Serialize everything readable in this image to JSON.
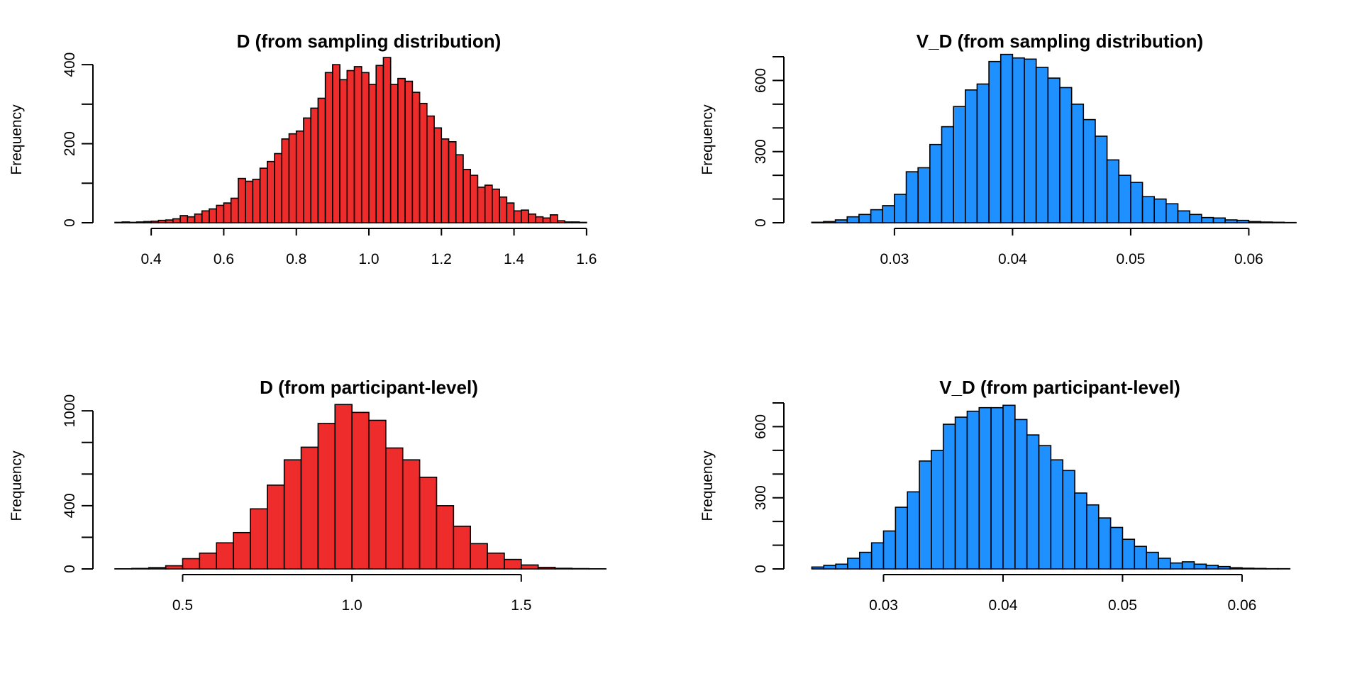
{
  "chart_data": [
    {
      "type": "bar",
      "title": "D (from sampling distribution)",
      "xlabel": "",
      "ylabel": "Frequency",
      "fill_color": "#ee2c2c",
      "x_range": [
        0.3,
        1.7
      ],
      "ylim": [
        0,
        420
      ],
      "x_ticks": [
        0.4,
        0.6,
        0.8,
        1.0,
        1.2,
        1.4,
        1.6
      ],
      "x_tick_labels": [
        "0.4",
        "0.6",
        "0.8",
        "1.0",
        "1.2",
        "1.4",
        "1.6"
      ],
      "y_ticks": [
        0,
        100,
        200,
        300,
        400
      ],
      "y_tick_labels": [
        "0",
        "",
        "200",
        "",
        "400"
      ],
      "bin_start": 0.3,
      "bin_width": 0.02,
      "values": [
        1,
        2,
        1,
        2,
        3,
        4,
        6,
        7,
        10,
        18,
        15,
        22,
        30,
        35,
        44,
        50,
        62,
        112,
        105,
        110,
        138,
        155,
        175,
        212,
        225,
        232,
        265,
        290,
        315,
        380,
        400,
        362,
        385,
        395,
        380,
        350,
        398,
        418,
        350,
        365,
        358,
        330,
        302,
        270,
        240,
        212,
        205,
        172,
        135,
        120,
        90,
        95,
        85,
        65,
        50,
        30,
        32,
        22,
        15,
        12,
        20,
        5,
        2,
        2,
        1,
        0,
        0,
        0,
        0,
        0
      ]
    },
    {
      "type": "bar",
      "title": "V_D (from sampling distribution)",
      "xlabel": "",
      "ylabel": "Frequency",
      "fill_color": "#1e90ff",
      "x_range": [
        0.0225,
        0.0655
      ],
      "ylim": [
        0,
        700
      ],
      "x_ticks": [
        0.03,
        0.04,
        0.05,
        0.06
      ],
      "x_tick_labels": [
        "0.03",
        "0.04",
        "0.05",
        "0.06"
      ],
      "y_ticks": [
        0,
        100,
        200,
        300,
        400,
        500,
        600,
        700
      ],
      "y_tick_labels": [
        "0",
        "",
        "",
        "300",
        "",
        "",
        "600",
        ""
      ],
      "bin_start": 0.023,
      "bin_width": 0.001,
      "values": [
        2,
        5,
        12,
        25,
        35,
        55,
        72,
        120,
        215,
        232,
        330,
        405,
        490,
        560,
        585,
        680,
        710,
        695,
        690,
        655,
        610,
        570,
        500,
        435,
        365,
        265,
        200,
        170,
        110,
        100,
        80,
        50,
        35,
        22,
        20,
        12,
        10,
        5,
        3,
        2,
        1,
        0
      ]
    },
    {
      "type": "bar",
      "title": "D (from participant-level)",
      "xlabel": "",
      "ylabel": "Frequency",
      "fill_color": "#ee2c2c",
      "x_range": [
        0.3,
        1.8
      ],
      "ylim": [
        0,
        1050
      ],
      "x_ticks": [
        0.5,
        1.0,
        1.5
      ],
      "x_tick_labels": [
        "0.5",
        "1.0",
        "1.5"
      ],
      "y_ticks": [
        0,
        200,
        400,
        600,
        800,
        1000
      ],
      "y_tick_labels": [
        "0",
        "",
        "400",
        "",
        "",
        "1000"
      ],
      "bin_start": 0.3,
      "bin_width": 0.05,
      "values": [
        1,
        3,
        8,
        20,
        65,
        100,
        165,
        230,
        380,
        530,
        690,
        770,
        920,
        1040,
        990,
        940,
        765,
        690,
        580,
        400,
        270,
        160,
        100,
        60,
        25,
        10,
        4,
        2,
        1,
        0
      ]
    },
    {
      "type": "bar",
      "title": "V_D (from participant-level)",
      "xlabel": "",
      "ylabel": "Frequency",
      "fill_color": "#1e90ff",
      "x_range": [
        0.0235,
        0.066
      ],
      "ylim": [
        0,
        700
      ],
      "x_ticks": [
        0.03,
        0.04,
        0.05,
        0.06
      ],
      "x_tick_labels": [
        "0.03",
        "0.04",
        "0.05",
        "0.06"
      ],
      "y_ticks": [
        0,
        100,
        200,
        300,
        400,
        500,
        600,
        700
      ],
      "y_tick_labels": [
        "0",
        "",
        "",
        "300",
        "",
        "",
        "600",
        ""
      ],
      "bin_start": 0.024,
      "bin_width": 0.001,
      "values": [
        8,
        15,
        20,
        45,
        70,
        110,
        160,
        260,
        325,
        455,
        500,
        610,
        640,
        665,
        680,
        680,
        690,
        630,
        565,
        520,
        460,
        415,
        320,
        270,
        215,
        175,
        125,
        95,
        70,
        45,
        25,
        30,
        20,
        15,
        10,
        5,
        3,
        2,
        1,
        1,
        0,
        0
      ]
    }
  ]
}
